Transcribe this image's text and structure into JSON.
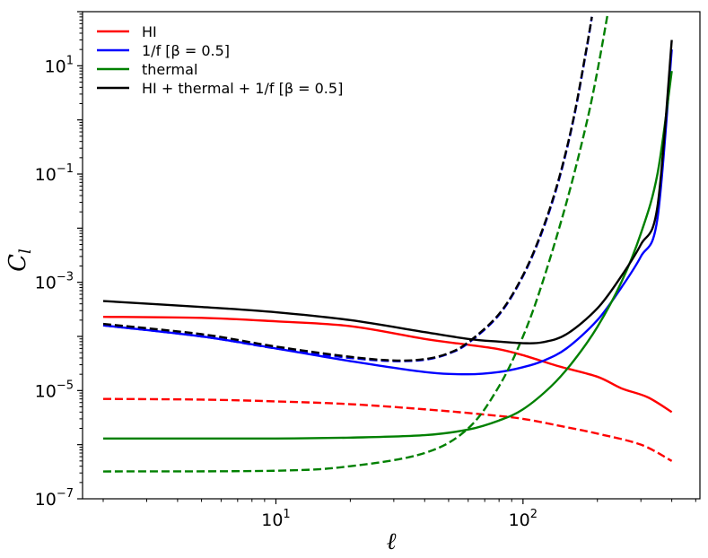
{
  "chart_data": {
    "type": "line",
    "title": "",
    "xlabel": "ℓ",
    "ylabel": "C_l",
    "xscale": "log",
    "yscale": "log",
    "xlim": [
      1.65,
      520
    ],
    "ylim": [
      1e-07,
      100.0
    ],
    "x_ticks": [
      {
        "value": 10,
        "base": "10",
        "exp": "1"
      },
      {
        "value": 100,
        "base": "10",
        "exp": "2"
      }
    ],
    "y_ticks": [
      {
        "value": 1e-07,
        "base": "10",
        "exp": "−7"
      },
      {
        "value": 1e-05,
        "base": "10",
        "exp": "−5"
      },
      {
        "value": 0.001,
        "base": "10",
        "exp": "−3"
      },
      {
        "value": 0.1,
        "base": "10",
        "exp": "−1"
      },
      {
        "value": 10,
        "base": "10",
        "exp": "1"
      }
    ],
    "grid": false,
    "legend_position": "top-left",
    "legend": [
      {
        "label": "HI",
        "color": "#ff0000"
      },
      {
        "label": "1/f [β = 0.5]",
        "color": "#0000ff"
      },
      {
        "label": "thermal",
        "color": "#008000"
      },
      {
        "label": "HI + thermal + 1/f [β = 0.5]",
        "color": "#000000"
      }
    ],
    "series": [
      {
        "color": "#ff0000",
        "style": "solid",
        "points": [
          [
            2,
            0.00023
          ],
          [
            5,
            0.00022
          ],
          [
            10,
            0.00019
          ],
          [
            20,
            0.000155
          ],
          [
            40,
            9e-05
          ],
          [
            60,
            7e-05
          ],
          [
            80,
            5.8e-05
          ],
          [
            100,
            4.5e-05
          ],
          [
            140,
            2.8e-05
          ],
          [
            200,
            1.8e-05
          ],
          [
            250,
            1.1e-05
          ],
          [
            320,
            7.5e-06
          ],
          [
            400,
            4e-06
          ]
        ]
      },
      {
        "color": "#ff0000",
        "style": "dashed",
        "points": [
          [
            2,
            7e-06
          ],
          [
            5,
            6.8e-06
          ],
          [
            10,
            6.3e-06
          ],
          [
            20,
            5.6e-06
          ],
          [
            40,
            4.5e-06
          ],
          [
            70,
            3.6e-06
          ],
          [
            100,
            3e-06
          ],
          [
            150,
            2.1e-06
          ],
          [
            200,
            1.6e-06
          ],
          [
            300,
            1e-06
          ],
          [
            400,
            5e-07
          ]
        ]
      },
      {
        "color": "#0000ff",
        "style": "solid",
        "points": [
          [
            2,
            0.00016
          ],
          [
            5,
            0.0001
          ],
          [
            10,
            6e-05
          ],
          [
            20,
            3.5e-05
          ],
          [
            40,
            2.2e-05
          ],
          [
            60,
            2e-05
          ],
          [
            80,
            2.2e-05
          ],
          [
            100,
            2.7e-05
          ],
          [
            120,
            3.5e-05
          ],
          [
            150,
            6e-05
          ],
          [
            200,
            0.0002
          ],
          [
            250,
            0.0008
          ],
          [
            300,
            0.003
          ],
          [
            350,
            0.015
          ],
          [
            400,
            20
          ]
        ]
      },
      {
        "color": "#0000ff",
        "style": "dashed",
        "points": [
          [
            2,
            0.00016
          ],
          [
            5,
            0.0001
          ],
          [
            10,
            6e-05
          ],
          [
            20,
            4e-05
          ],
          [
            30,
            3.5e-05
          ],
          [
            40,
            3.7e-05
          ],
          [
            50,
            4.8e-05
          ],
          [
            60,
            7.5e-05
          ],
          [
            80,
            0.00025
          ],
          [
            100,
            0.0013
          ],
          [
            120,
            0.009
          ],
          [
            140,
            0.08
          ],
          [
            160,
            1
          ],
          [
            180,
            18
          ],
          [
            190,
            80
          ]
        ]
      },
      {
        "color": "#008000",
        "style": "solid",
        "points": [
          [
            2,
            1.3e-06
          ],
          [
            10,
            1.3e-06
          ],
          [
            20,
            1.35e-06
          ],
          [
            40,
            1.5e-06
          ],
          [
            60,
            1.9e-06
          ],
          [
            80,
            2.8e-06
          ],
          [
            100,
            4.5e-06
          ],
          [
            130,
            1.2e-05
          ],
          [
            160,
            3.5e-05
          ],
          [
            200,
            0.00015
          ],
          [
            250,
            0.001
          ],
          [
            300,
            0.008
          ],
          [
            350,
            0.1
          ],
          [
            400,
            8
          ]
        ]
      },
      {
        "color": "#008000",
        "style": "dashed",
        "points": [
          [
            2,
            3.2e-07
          ],
          [
            10,
            3.3e-07
          ],
          [
            20,
            4e-07
          ],
          [
            40,
            7e-07
          ],
          [
            60,
            2e-06
          ],
          [
            80,
            1.2e-05
          ],
          [
            100,
            0.0001
          ],
          [
            120,
            0.001
          ],
          [
            150,
            0.03
          ],
          [
            180,
            0.8
          ],
          [
            200,
            8
          ],
          [
            220,
            90
          ]
        ]
      },
      {
        "color": "#000000",
        "style": "solid",
        "points": [
          [
            2,
            0.00045
          ],
          [
            5,
            0.00035
          ],
          [
            10,
            0.00028
          ],
          [
            20,
            0.0002
          ],
          [
            40,
            0.00012
          ],
          [
            60,
            9e-05
          ],
          [
            80,
            8e-05
          ],
          [
            100,
            7.5e-05
          ],
          [
            120,
            7.8e-05
          ],
          [
            150,
            0.00011
          ],
          [
            200,
            0.00033
          ],
          [
            250,
            0.0013
          ],
          [
            300,
            0.005
          ],
          [
            350,
            0.025
          ],
          [
            400,
            30
          ]
        ]
      },
      {
        "color": "#000000",
        "style": "dashed",
        "points": [
          [
            2,
            0.00017
          ],
          [
            5,
            0.00011
          ],
          [
            10,
            6.5e-05
          ],
          [
            20,
            4.2e-05
          ],
          [
            30,
            3.6e-05
          ],
          [
            40,
            3.8e-05
          ],
          [
            50,
            4.9e-05
          ],
          [
            60,
            7.8e-05
          ],
          [
            80,
            0.00026
          ],
          [
            100,
            0.00135
          ],
          [
            120,
            0.0095
          ],
          [
            140,
            0.085
          ],
          [
            160,
            1.05
          ],
          [
            180,
            19
          ],
          [
            190,
            80
          ]
        ]
      }
    ]
  }
}
